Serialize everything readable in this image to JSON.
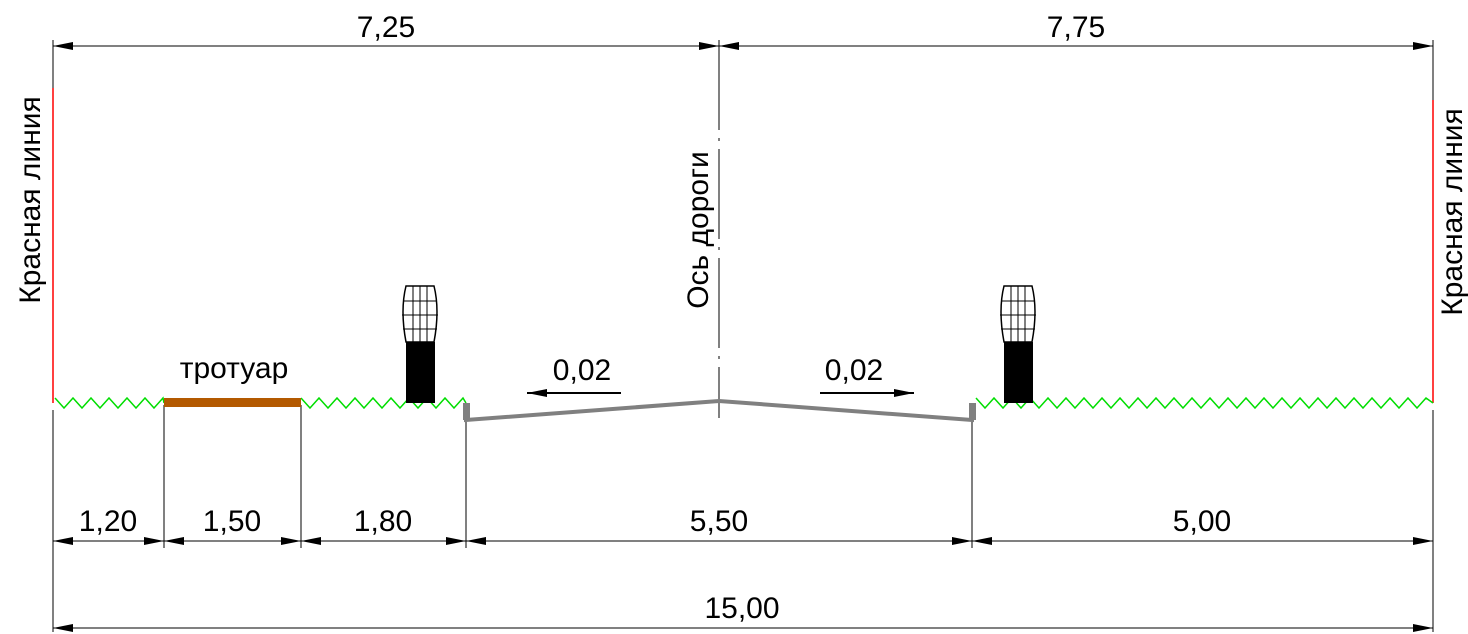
{
  "labels": {
    "red_line_left": "Красная линия",
    "red_line_right": "Красная линия",
    "road_axis": "Ось дороги",
    "sidewalk": "тротуар",
    "slope_left": "0,02",
    "slope_right": "0,02"
  },
  "dimensions": {
    "top_left": "7,25",
    "top_right": "7,75",
    "bottom_1": "1,20",
    "bottom_2": "1,50",
    "bottom_3": "1,80",
    "bottom_4": "5,50",
    "bottom_5": "5,00",
    "total": "15,00"
  },
  "colors": {
    "red_line": "#ff0000",
    "grass": "#00dd00",
    "sidewalk": "#b35900",
    "road": "#808080",
    "lamp": "#000000"
  }
}
